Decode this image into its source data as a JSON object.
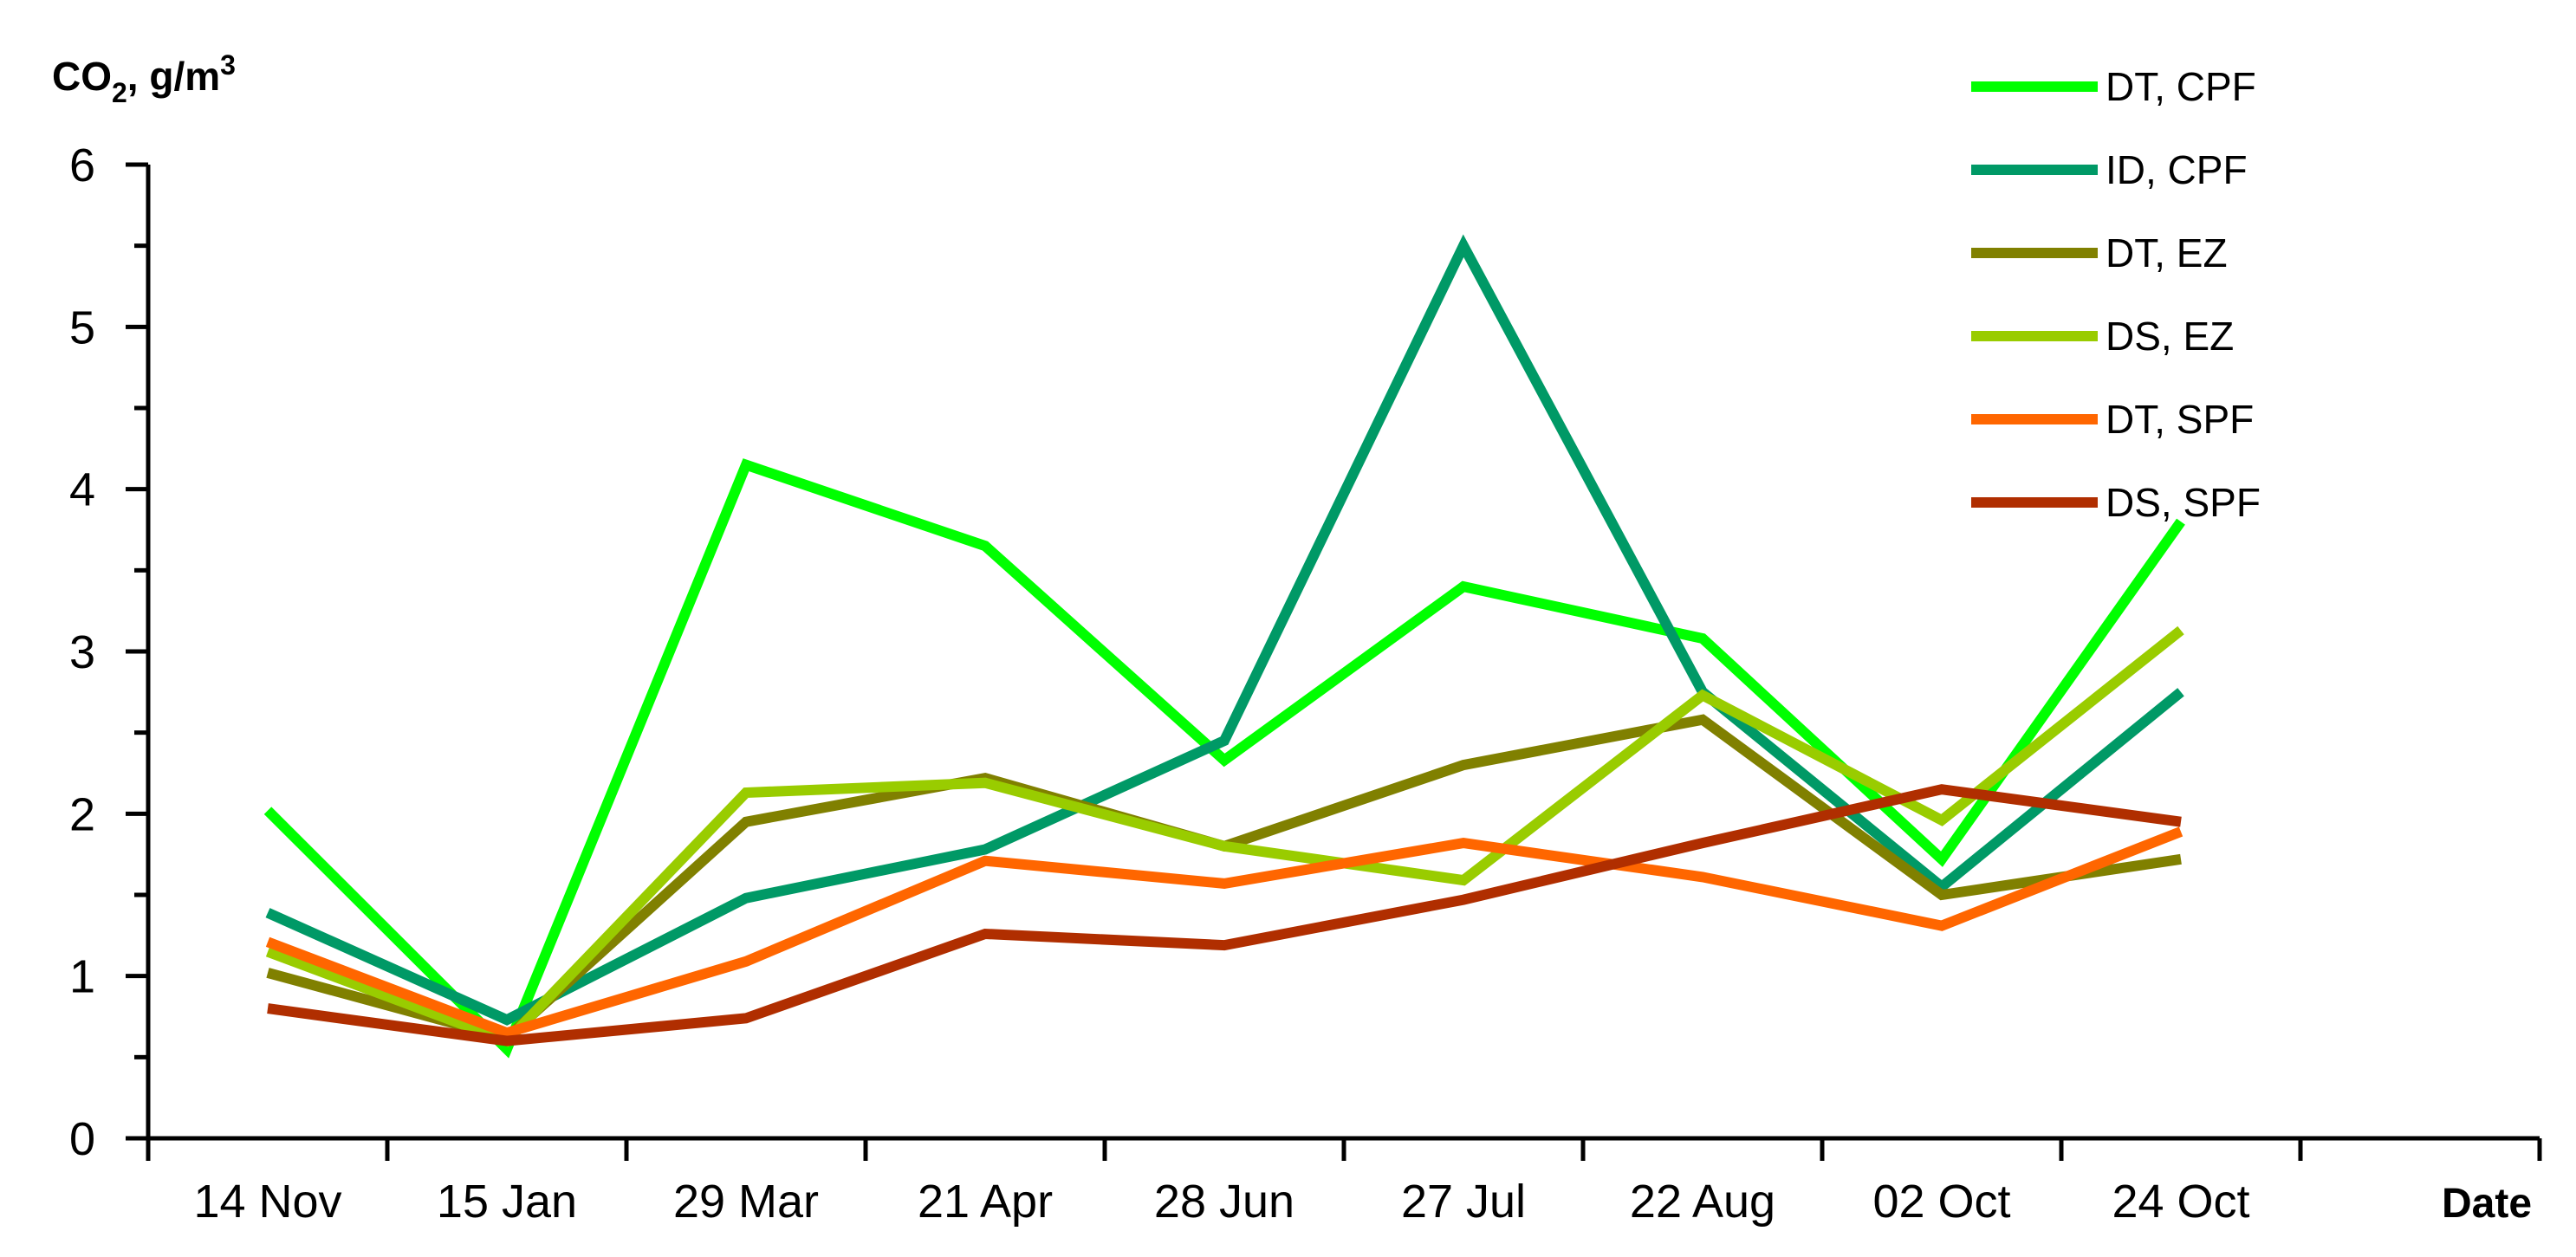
{
  "chart_data": {
    "type": "line",
    "title": "",
    "ylabel": {
      "main": "CO",
      "sub": "2",
      "unit": ", g/m",
      "sup": "3"
    },
    "xlabel": "Date",
    "ylim": [
      0,
      6
    ],
    "yticks": [
      "0",
      "1",
      "2",
      "3",
      "4",
      "5",
      "6"
    ],
    "categories": [
      "14 Nov",
      "15 Jan",
      "29 Mar",
      "21 Apr",
      "28 Jun",
      "27 Jul",
      "22 Aug",
      "02 Oct",
      "24 Oct"
    ],
    "legend_position": "top-right",
    "grid": false,
    "series": [
      {
        "name": "DT, CPF",
        "color": "#00FF00",
        "values": [
          2.02,
          0.55,
          4.15,
          3.65,
          2.33,
          3.4,
          3.08,
          1.72,
          3.8
        ]
      },
      {
        "name": "ID, CPF",
        "color": "#009966",
        "values": [
          1.39,
          0.73,
          1.48,
          1.78,
          2.45,
          5.5,
          2.75,
          1.55,
          2.75
        ]
      },
      {
        "name": "DT, EZ",
        "color": "#808000",
        "values": [
          1.02,
          0.62,
          1.95,
          2.22,
          1.8,
          2.3,
          2.58,
          1.5,
          1.72
        ]
      },
      {
        "name": "DS, EZ",
        "color": "#99CC00",
        "values": [
          1.15,
          0.6,
          2.13,
          2.19,
          1.8,
          1.59,
          2.73,
          1.96,
          3.13
        ]
      },
      {
        "name": "DT, SPF",
        "color": "#FF6600",
        "values": [
          1.21,
          0.65,
          1.09,
          1.71,
          1.57,
          1.82,
          1.61,
          1.31,
          1.89
        ]
      },
      {
        "name": "DS, SPF",
        "color": "#B02E00",
        "values": [
          0.8,
          0.6,
          0.74,
          1.26,
          1.19,
          1.47,
          1.82,
          2.15,
          1.95
        ]
      }
    ]
  }
}
